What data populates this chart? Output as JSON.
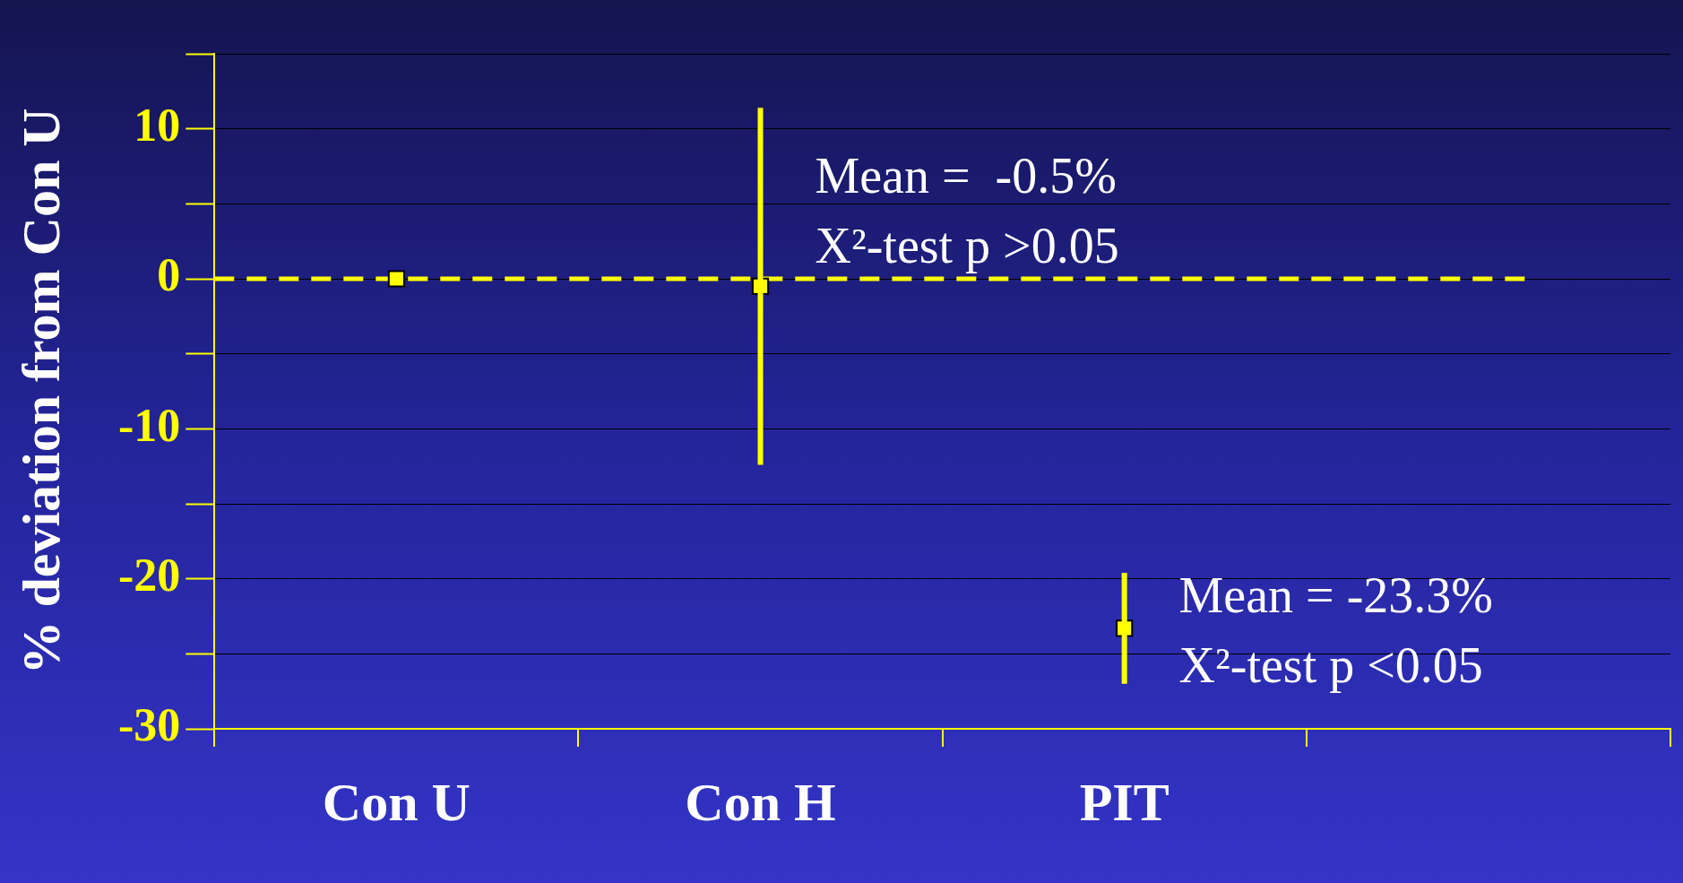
{
  "chart_data": {
    "type": "scatter",
    "ylabel": "% deviation from Con U",
    "categories": [
      "Con U",
      "Con H",
      "PIT",
      null
    ],
    "series": [
      {
        "color": "#ffff00",
        "values": [
          0,
          -0.5,
          -23.3,
          null
        ],
        "errors": [
          null,
          11.9,
          3.7,
          null
        ]
      }
    ],
    "ylim": [
      -30,
      15
    ],
    "yticks": [
      -30,
      {
        "value": -25,
        "label": null
      },
      -20,
      {
        "value": -15,
        "label": null
      },
      -10,
      {
        "value": -5,
        "label": null
      },
      0,
      {
        "value": 5,
        "label": null
      },
      10,
      {
        "value": 15,
        "label": null
      }
    ],
    "grid": "y",
    "legend": false,
    "marker": "square",
    "ref_lines": [
      {
        "axis": "y",
        "value": 0,
        "color": "#ffff00",
        "line_style": "dashed"
      }
    ],
    "annotations": [
      {
        "text": "Mean =  -0.5%\nX²-test p >0.05",
        "x": "Con H",
        "y": 4.3
      },
      {
        "text": "Mean = -23.3%\nX²-test p <0.05",
        "x": "PIT",
        "y": -23.7
      }
    ]
  }
}
